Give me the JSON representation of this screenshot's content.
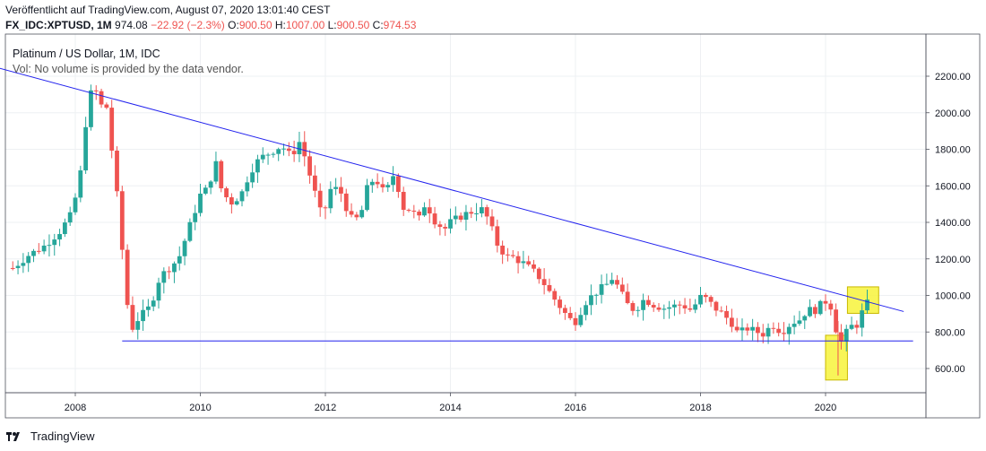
{
  "header": {
    "published": "Veröffentlicht auf TradingView.com, August 07, 2020 13:01:40 CEST",
    "symbol": "FX_IDC:XPTUSD, 1M",
    "last": "974.08",
    "change": "−22.92 (−2.3%)",
    "o_label": "O:",
    "o_value": "900.50",
    "h_label": "H:",
    "h_value": "1007.00",
    "l_label": "L:",
    "l_value": "900.50",
    "c_label": "C:",
    "c_value": "974.53"
  },
  "legend": {
    "line1": "Platinum / US Dollar, 1M, IDC",
    "line2": "Vol: No volume is provided by the data vendor."
  },
  "brand": {
    "name": "TradingView",
    "icon": "tradingview-logo-icon"
  },
  "colors": {
    "up": "#26a69a",
    "down": "#ef5350",
    "trendline": "#2222ee",
    "highlight": "#f7f33b"
  },
  "chart_data": {
    "type": "candlestick",
    "title": "Platinum / US Dollar, 1M, IDC",
    "y_ticks": [
      "2200.00",
      "2000.00",
      "1800.00",
      "1600.00",
      "1400.00",
      "1200.00",
      "1000.00",
      "800.00",
      "600.00"
    ],
    "x_ticks": [
      "2008",
      "2010",
      "2012",
      "2014",
      "2016",
      "2018",
      "2020"
    ],
    "ylim": [
      475,
      2345
    ],
    "xlim": [
      2007.0,
      2021.8
    ],
    "grid": true,
    "price_path": [
      [
        2007.0,
        1150
      ],
      [
        2007.25,
        1220
      ],
      [
        2007.5,
        1270
      ],
      [
        2007.75,
        1350
      ],
      [
        2007.95,
        1450
      ],
      [
        2008.1,
        1700
      ],
      [
        2008.2,
        2060
      ],
      [
        2008.3,
        2150
      ],
      [
        2008.4,
        2040
      ],
      [
        2008.5,
        2030
      ],
      [
        2008.6,
        1750
      ],
      [
        2008.7,
        1450
      ],
      [
        2008.8,
        1050
      ],
      [
        2008.85,
        900
      ],
      [
        2008.92,
        820
      ],
      [
        2009.0,
        870
      ],
      [
        2009.2,
        940
      ],
      [
        2009.35,
        1100
      ],
      [
        2009.5,
        1150
      ],
      [
        2009.65,
        1200
      ],
      [
        2009.85,
        1400
      ],
      [
        2010.0,
        1550
      ],
      [
        2010.1,
        1580
      ],
      [
        2010.25,
        1720
      ],
      [
        2010.35,
        1560
      ],
      [
        2010.5,
        1510
      ],
      [
        2010.65,
        1550
      ],
      [
        2010.8,
        1680
      ],
      [
        2010.95,
        1750
      ],
      [
        2011.1,
        1780
      ],
      [
        2011.3,
        1820
      ],
      [
        2011.45,
        1760
      ],
      [
        2011.6,
        1850
      ],
      [
        2011.7,
        1720
      ],
      [
        2011.8,
        1600
      ],
      [
        2011.95,
        1420
      ],
      [
        2012.1,
        1600
      ],
      [
        2012.25,
        1560
      ],
      [
        2012.4,
        1420
      ],
      [
        2012.55,
        1420
      ],
      [
        2012.7,
        1630
      ],
      [
        2012.85,
        1620
      ],
      [
        2012.95,
        1550
      ],
      [
        2013.1,
        1670
      ],
      [
        2013.25,
        1480
      ],
      [
        2013.35,
        1470
      ],
      [
        2013.5,
        1420
      ],
      [
        2013.6,
        1510
      ],
      [
        2013.75,
        1410
      ],
      [
        2013.9,
        1360
      ],
      [
        2014.0,
        1400
      ],
      [
        2014.2,
        1440
      ],
      [
        2014.35,
        1460
      ],
      [
        2014.5,
        1470
      ],
      [
        2014.6,
        1420
      ],
      [
        2014.75,
        1280
      ],
      [
        2014.9,
        1210
      ],
      [
        2015.0,
        1210
      ],
      [
        2015.15,
        1180
      ],
      [
        2015.3,
        1140
      ],
      [
        2015.45,
        1090
      ],
      [
        2015.6,
        1010
      ],
      [
        2015.75,
        940
      ],
      [
        2015.9,
        870
      ],
      [
        2016.0,
        860
      ],
      [
        2016.15,
        960
      ],
      [
        2016.3,
        1010
      ],
      [
        2016.5,
        1060
      ],
      [
        2016.6,
        1100
      ],
      [
        2016.7,
        1030
      ],
      [
        2016.85,
        940
      ],
      [
        2016.95,
        920
      ],
      [
        2017.1,
        980
      ],
      [
        2017.25,
        950
      ],
      [
        2017.4,
        930
      ],
      [
        2017.55,
        940
      ],
      [
        2017.7,
        950
      ],
      [
        2017.85,
        920
      ],
      [
        2018.0,
        990
      ],
      [
        2018.1,
        980
      ],
      [
        2018.2,
        940
      ],
      [
        2018.35,
        900
      ],
      [
        2018.5,
        850
      ],
      [
        2018.6,
        790
      ],
      [
        2018.75,
        820
      ],
      [
        2018.9,
        800
      ],
      [
        2019.0,
        790
      ],
      [
        2019.15,
        840
      ],
      [
        2019.3,
        800
      ],
      [
        2019.45,
        850
      ],
      [
        2019.6,
        870
      ],
      [
        2019.7,
        920
      ],
      [
        2019.85,
        920
      ],
      [
        2019.95,
        960
      ],
      [
        2020.05,
        975
      ],
      [
        2020.15,
        870
      ],
      [
        2020.2,
        710
      ],
      [
        2020.3,
        780
      ],
      [
        2020.4,
        830
      ],
      [
        2020.5,
        840
      ],
      [
        2020.6,
        920
      ],
      [
        2020.7,
        974
      ]
    ],
    "annotations": {
      "resistance_line": [
        [
          2006.5,
          2270
        ],
        [
          2021.25,
          912
        ]
      ],
      "support_line": [
        [
          2008.75,
          751
        ],
        [
          2021.4,
          751
        ]
      ],
      "boxes": [
        {
          "x": [
            2020.0,
            2020.35
          ],
          "y": [
            537,
            782
          ]
        },
        {
          "x": [
            2020.35,
            2020.85
          ],
          "y": [
            902,
            1047
          ]
        }
      ]
    }
  }
}
